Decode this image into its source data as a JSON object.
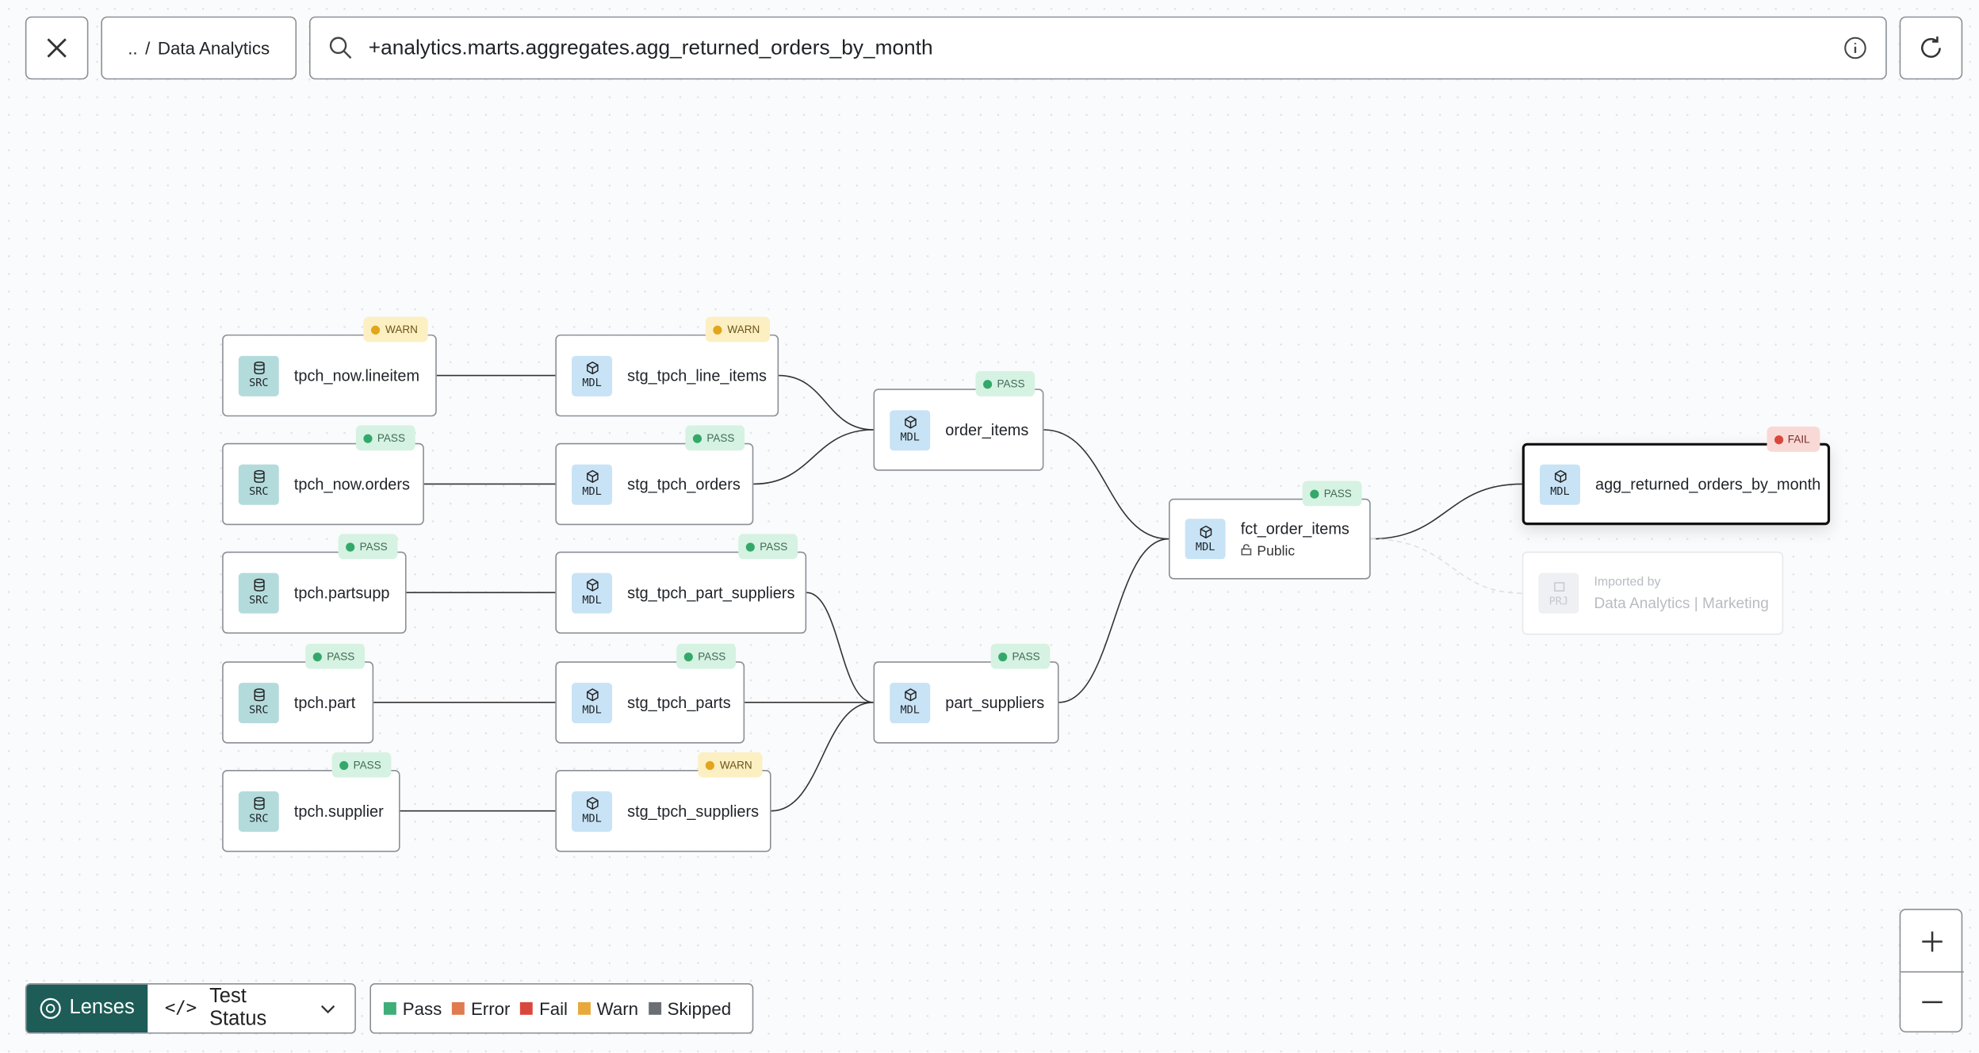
{
  "header": {
    "breadcrumb_up": "..",
    "breadcrumb_sep": "/",
    "breadcrumb_project": "Data Analytics",
    "search_query": "+analytics.marts.aggregates.agg_returned_orders_by_month"
  },
  "nodes": [
    {
      "kind": "SRC",
      "label": "tpch_now.lineitem",
      "status": "WARN"
    },
    {
      "kind": "SRC",
      "label": "tpch_now.orders",
      "status": "PASS"
    },
    {
      "kind": "SRC",
      "label": "tpch.partsupp",
      "status": "PASS"
    },
    {
      "kind": "SRC",
      "label": "tpch.part",
      "status": "PASS"
    },
    {
      "kind": "SRC",
      "label": "tpch.supplier",
      "status": "PASS"
    },
    {
      "kind": "MDL",
      "label": "stg_tpch_line_items",
      "status": "WARN"
    },
    {
      "kind": "MDL",
      "label": "stg_tpch_orders",
      "status": "PASS"
    },
    {
      "kind": "MDL",
      "label": "stg_tpch_part_suppliers",
      "status": "PASS"
    },
    {
      "kind": "MDL",
      "label": "stg_tpch_parts",
      "status": "PASS"
    },
    {
      "kind": "MDL",
      "label": "stg_tpch_suppliers",
      "status": "WARN"
    },
    {
      "kind": "MDL",
      "label": "order_items",
      "status": "PASS"
    },
    {
      "kind": "MDL",
      "label": "part_suppliers",
      "status": "PASS"
    },
    {
      "kind": "MDL",
      "label": "fct_order_items",
      "status": "PASS",
      "sublabel": "Public"
    },
    {
      "kind": "MDL",
      "label": "agg_returned_orders_by_month",
      "status": "FAIL"
    }
  ],
  "imported": {
    "kind": "PRJ",
    "caption": "Imported by",
    "label": "Data Analytics | Marketing"
  },
  "footer": {
    "lenses": "Lenses",
    "lens": "Test Status",
    "legend": [
      "Pass",
      "Error",
      "Fail",
      "Warn",
      "Skipped"
    ]
  }
}
